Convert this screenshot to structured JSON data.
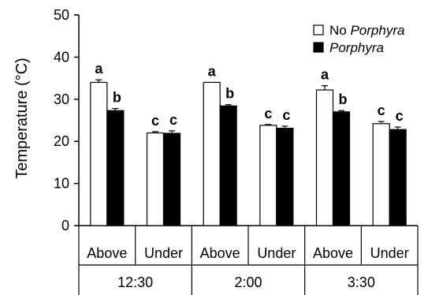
{
  "chart_data": {
    "type": "bar",
    "ylabel": "Temperature (°C)",
    "ylim": [
      0,
      50
    ],
    "yticks": [
      "0",
      "10",
      "20",
      "30",
      "40",
      "50"
    ],
    "grid": false,
    "legend_placement": "top-right",
    "groups": [
      "12:30",
      "2:00",
      "3:30"
    ],
    "positions": [
      "Above",
      "Under"
    ],
    "categories": [
      "Above",
      "Under",
      "Above",
      "Under",
      "Above",
      "Under"
    ],
    "series": [
      {
        "name_parts": [
          "No ",
          "Porphyra"
        ],
        "color": "#ffffff",
        "values": [
          34.0,
          22.0,
          34.0,
          23.8,
          32.2,
          24.2
        ],
        "errors": [
          0.6,
          0.3,
          0.0,
          0.2,
          1.0,
          0.5
        ],
        "letters": [
          "a",
          "c",
          "a",
          "c",
          "a",
          "c"
        ]
      },
      {
        "name_parts": [
          "Porphyra"
        ],
        "color": "#000000",
        "values": [
          27.3,
          21.9,
          28.4,
          23.1,
          27.0,
          22.8
        ],
        "errors": [
          0.5,
          0.6,
          0.3,
          0.5,
          0.3,
          0.6
        ],
        "letters": [
          "b",
          "c",
          "b",
          "c",
          "b",
          "c"
        ]
      }
    ]
  }
}
